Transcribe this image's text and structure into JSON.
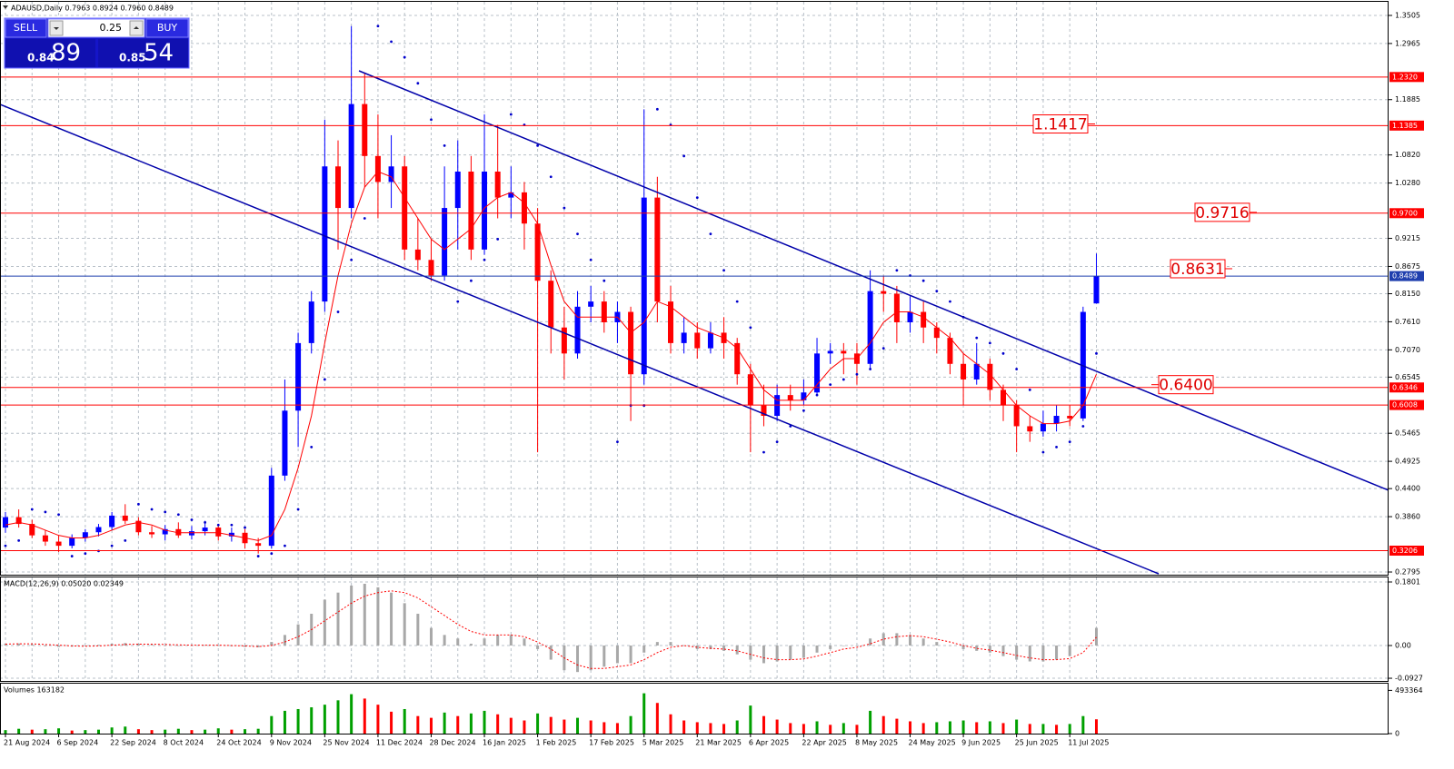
{
  "trade_panel": {
    "sell": "SELL",
    "buy": "BUY",
    "lot": "0.25",
    "sell_big": "0.84",
    "sell_small": "89",
    "buy_big": "0.85",
    "buy_small": "54"
  },
  "chart_data": [
    {
      "type": "candlestick",
      "title": "ADAUSD,Daily 0.7963 0.8924 0.7960 0.8489",
      "categories": [
        "21 Aug 2024",
        null,
        null,
        null,
        "6 Sep 2024",
        null,
        null,
        null,
        "22 Sep 2024",
        null,
        null,
        null,
        "8 Oct 2024",
        null,
        null,
        null,
        "24 Oct 2024",
        null,
        null,
        null,
        "9 Nov 2024",
        null,
        null,
        null,
        "25 Nov 2024",
        null,
        null,
        null,
        "11 Dec 2024",
        null,
        null,
        null,
        "28 Dec 2024",
        null,
        null,
        null,
        "16 Jan 2025",
        null,
        null,
        null,
        "1 Feb 2025",
        null,
        null,
        null,
        "17 Feb 2025",
        null,
        null,
        null,
        "5 Mar 2025",
        null,
        null,
        null,
        "21 Mar 2025",
        null,
        null,
        null,
        "6 Apr 2025",
        null,
        null,
        null,
        "22 Apr 2025",
        null,
        null,
        null,
        "8 May 2025",
        null,
        null,
        null,
        "24 May 2025",
        null,
        null,
        null,
        "9 Jun 2025",
        null,
        null,
        null,
        "25 Jun 2025",
        null,
        null,
        null,
        "11 Jul 2025",
        null,
        null
      ],
      "ohlc": [
        [
          0.365,
          0.395,
          0.355,
          0.385
        ],
        [
          0.385,
          0.4,
          0.365,
          0.372
        ],
        [
          0.372,
          0.38,
          0.345,
          0.35
        ],
        [
          0.35,
          0.36,
          0.33,
          0.338
        ],
        [
          0.338,
          0.35,
          0.318,
          0.33
        ],
        [
          0.33,
          0.352,
          0.325,
          0.345
        ],
        [
          0.345,
          0.362,
          0.338,
          0.356
        ],
        [
          0.356,
          0.372,
          0.348,
          0.366
        ],
        [
          0.366,
          0.395,
          0.36,
          0.388
        ],
        [
          0.388,
          0.41,
          0.372,
          0.378
        ],
        [
          0.378,
          0.385,
          0.35,
          0.356
        ],
        [
          0.356,
          0.368,
          0.345,
          0.352
        ],
        [
          0.352,
          0.37,
          0.34,
          0.362
        ],
        [
          0.362,
          0.375,
          0.345,
          0.35
        ],
        [
          0.35,
          0.368,
          0.342,
          0.358
        ],
        [
          0.358,
          0.378,
          0.35,
          0.365
        ],
        [
          0.365,
          0.372,
          0.34,
          0.348
        ],
        [
          0.348,
          0.365,
          0.338,
          0.355
        ],
        [
          0.355,
          0.362,
          0.325,
          0.335
        ],
        [
          0.335,
          0.345,
          0.315,
          0.33
        ],
        [
          0.33,
          0.48,
          0.325,
          0.465
        ],
        [
          0.465,
          0.65,
          0.455,
          0.59
        ],
        [
          0.59,
          0.74,
          0.52,
          0.72
        ],
        [
          0.72,
          0.82,
          0.7,
          0.8
        ],
        [
          0.8,
          1.15,
          0.78,
          1.06
        ],
        [
          1.06,
          1.11,
          0.9,
          0.98
        ],
        [
          0.98,
          1.33,
          0.96,
          1.18
        ],
        [
          1.18,
          1.24,
          1.02,
          1.08
        ],
        [
          1.08,
          1.16,
          0.96,
          1.03
        ],
        [
          1.03,
          1.12,
          0.98,
          1.06
        ],
        [
          1.06,
          1.08,
          0.88,
          0.9
        ],
        [
          0.9,
          0.96,
          0.86,
          0.88
        ],
        [
          0.88,
          0.92,
          0.84,
          0.85
        ],
        [
          0.85,
          1.06,
          0.84,
          0.98
        ],
        [
          0.98,
          1.11,
          0.9,
          1.05
        ],
        [
          1.05,
          1.08,
          0.88,
          0.9
        ],
        [
          0.9,
          1.16,
          0.89,
          1.05
        ],
        [
          1.05,
          1.14,
          0.96,
          1.0
        ],
        [
          1.0,
          1.06,
          0.96,
          1.01
        ],
        [
          1.01,
          1.03,
          0.9,
          0.95
        ],
        [
          0.95,
          0.98,
          0.51,
          0.84
        ],
        [
          0.84,
          0.86,
          0.7,
          0.75
        ],
        [
          0.75,
          0.79,
          0.65,
          0.7
        ],
        [
          0.7,
          0.82,
          0.69,
          0.79
        ],
        [
          0.79,
          0.83,
          0.76,
          0.8
        ],
        [
          0.8,
          0.82,
          0.74,
          0.76
        ],
        [
          0.76,
          0.8,
          0.72,
          0.78
        ],
        [
          0.78,
          0.79,
          0.57,
          0.66
        ],
        [
          0.66,
          1.17,
          0.64,
          1.0
        ],
        [
          1.0,
          1.04,
          0.76,
          0.8
        ],
        [
          0.8,
          0.83,
          0.7,
          0.72
        ],
        [
          0.72,
          0.77,
          0.7,
          0.74
        ],
        [
          0.74,
          0.76,
          0.69,
          0.71
        ],
        [
          0.71,
          0.76,
          0.7,
          0.74
        ],
        [
          0.74,
          0.77,
          0.69,
          0.72
        ],
        [
          0.72,
          0.73,
          0.64,
          0.66
        ],
        [
          0.66,
          0.68,
          0.51,
          0.6
        ],
        [
          0.6,
          0.64,
          0.56,
          0.58
        ],
        [
          0.58,
          0.64,
          0.57,
          0.62
        ],
        [
          0.62,
          0.64,
          0.59,
          0.61
        ],
        [
          0.61,
          0.65,
          0.6,
          0.625
        ],
        [
          0.625,
          0.73,
          0.62,
          0.7
        ],
        [
          0.7,
          0.72,
          0.68,
          0.705
        ],
        [
          0.705,
          0.72,
          0.66,
          0.7
        ],
        [
          0.7,
          0.72,
          0.64,
          0.68
        ],
        [
          0.68,
          0.86,
          0.67,
          0.82
        ],
        [
          0.82,
          0.85,
          0.78,
          0.815
        ],
        [
          0.815,
          0.83,
          0.72,
          0.76
        ],
        [
          0.76,
          0.81,
          0.74,
          0.78
        ],
        [
          0.78,
          0.8,
          0.72,
          0.75
        ],
        [
          0.75,
          0.76,
          0.7,
          0.73
        ],
        [
          0.73,
          0.74,
          0.66,
          0.68
        ],
        [
          0.68,
          0.7,
          0.6,
          0.65
        ],
        [
          0.65,
          0.72,
          0.64,
          0.68
        ],
        [
          0.68,
          0.69,
          0.61,
          0.63
        ],
        [
          0.63,
          0.64,
          0.57,
          0.6
        ],
        [
          0.6,
          0.61,
          0.51,
          0.56
        ],
        [
          0.56,
          0.58,
          0.53,
          0.55
        ],
        [
          0.55,
          0.59,
          0.54,
          0.565
        ],
        [
          0.565,
          0.6,
          0.55,
          0.58
        ],
        [
          0.58,
          0.6,
          0.56,
          0.575
        ],
        [
          0.575,
          0.79,
          0.57,
          0.78
        ],
        [
          0.7963,
          0.8924,
          0.796,
          0.8489
        ]
      ],
      "up_color": "#0000ff",
      "down_color": "#ff0000",
      "ma": [
        0.37,
        0.375,
        0.37,
        0.36,
        0.35,
        0.345,
        0.345,
        0.35,
        0.36,
        0.37,
        0.375,
        0.37,
        0.36,
        0.355,
        0.355,
        0.355,
        0.355,
        0.35,
        0.345,
        0.34,
        0.35,
        0.4,
        0.48,
        0.58,
        0.72,
        0.85,
        0.95,
        1.02,
        1.05,
        1.04,
        1.0,
        0.96,
        0.92,
        0.9,
        0.92,
        0.94,
        0.98,
        1.0,
        1.01,
        0.99,
        0.95,
        0.87,
        0.8,
        0.77,
        0.77,
        0.77,
        0.77,
        0.74,
        0.76,
        0.8,
        0.79,
        0.77,
        0.75,
        0.74,
        0.73,
        0.71,
        0.67,
        0.63,
        0.61,
        0.61,
        0.61,
        0.64,
        0.67,
        0.69,
        0.69,
        0.72,
        0.76,
        0.78,
        0.78,
        0.77,
        0.75,
        0.73,
        0.7,
        0.68,
        0.66,
        0.63,
        0.6,
        0.58,
        0.565,
        0.565,
        0.57,
        0.6,
        0.66
      ],
      "ma_color": "#ff0000",
      "sar": [
        0.33,
        0.34,
        0.4,
        0.395,
        0.39,
        0.31,
        0.315,
        0.32,
        0.33,
        0.34,
        0.41,
        0.4,
        0.395,
        0.39,
        0.38,
        0.375,
        0.37,
        0.37,
        0.365,
        0.31,
        0.315,
        0.33,
        0.4,
        0.52,
        0.65,
        0.78,
        0.88,
        0.96,
        1.33,
        1.3,
        1.27,
        1.22,
        1.15,
        1.1,
        0.8,
        0.84,
        0.88,
        0.92,
        1.16,
        1.14,
        1.1,
        1.04,
        0.98,
        0.93,
        0.88,
        0.84,
        0.53,
        0.6,
        0.6,
        1.17,
        1.14,
        1.08,
        1.0,
        0.93,
        0.86,
        0.8,
        0.75,
        0.51,
        0.53,
        0.56,
        0.59,
        0.62,
        0.64,
        0.65,
        0.66,
        0.67,
        0.71,
        0.86,
        0.85,
        0.84,
        0.82,
        0.8,
        0.77,
        0.73,
        0.72,
        0.7,
        0.67,
        0.63,
        0.51,
        0.52,
        0.53,
        0.56,
        0.7
      ],
      "sar_color": "#0000cc",
      "levels": [
        {
          "value": 1.232,
          "label": "1.2320",
          "color": "#ff0000"
        },
        {
          "value": 1.1385,
          "label": "1.1385",
          "color": "#ff0000"
        },
        {
          "value": 0.97,
          "label": "0.9700",
          "color": "#ff0000"
        },
        {
          "value": 0.8489,
          "label": "0.8489",
          "color": "#1f3fae"
        },
        {
          "value": 0.6346,
          "label": "0.6346",
          "color": "#ff0000"
        },
        {
          "value": 0.6008,
          "label": "0.6008",
          "color": "#ff0000"
        },
        {
          "value": 0.3206,
          "label": "0.3206",
          "color": "#ff0000"
        }
      ],
      "annotations": [
        1.1417,
        0.9716,
        0.8631,
        {
          "value": 0.64,
          "label": "0.6400"
        }
      ],
      "ylim": [
        0.2743,
        1.3767
      ],
      "yticks": [
        1.3505,
        1.2965,
        1.1885,
        {
          "value": 1.082,
          "label": "1.0820"
        },
        {
          "value": 1.028,
          "label": "1.0280"
        },
        0.9215,
        0.8675,
        {
          "value": 0.815,
          "label": "0.8150"
        },
        {
          "value": 0.761,
          "label": "0.7610"
        },
        {
          "value": 0.707,
          "label": "0.7070"
        },
        0.6545,
        0.5465,
        0.4925,
        {
          "value": 0.44,
          "label": "0.4400"
        },
        {
          "value": 0.386,
          "label": "0.3860"
        },
        0.2795
      ],
      "grid": true
    },
    {
      "type": "macd",
      "title": "MACD(12,26,9) 0.05020 0.02349",
      "histogram": [
        0.005,
        0.006,
        0.003,
        -0.002,
        -0.004,
        -0.003,
        -0.001,
        0.002,
        0.005,
        0.007,
        0.005,
        0.002,
        0.0,
        -0.001,
        0.0,
        0.001,
        0.0,
        -0.002,
        -0.004,
        -0.005,
        0.01,
        0.03,
        0.06,
        0.09,
        0.13,
        0.15,
        0.17,
        0.175,
        0.165,
        0.15,
        0.12,
        0.09,
        0.05,
        0.03,
        0.02,
        0.005,
        0.02,
        0.03,
        0.03,
        0.02,
        -0.01,
        -0.04,
        -0.07,
        -0.075,
        -0.07,
        -0.06,
        -0.05,
        -0.05,
        -0.02,
        0.01,
        0.01,
        0.0,
        -0.01,
        -0.01,
        -0.015,
        -0.025,
        -0.04,
        -0.05,
        -0.045,
        -0.04,
        -0.035,
        -0.02,
        -0.01,
        0.0,
        0.0,
        0.02,
        0.035,
        0.035,
        0.03,
        0.02,
        0.01,
        0.0,
        -0.01,
        -0.015,
        -0.02,
        -0.03,
        -0.04,
        -0.045,
        -0.045,
        -0.04,
        -0.03,
        0.0,
        0.0502
      ],
      "signal": [
        0.004,
        0.005,
        0.005,
        0.003,
        0.001,
        -0.001,
        -0.002,
        -0.001,
        0.001,
        0.003,
        0.004,
        0.004,
        0.003,
        0.002,
        0.001,
        0.001,
        0.001,
        0.0,
        -0.001,
        -0.003,
        0.0,
        0.01,
        0.025,
        0.045,
        0.07,
        0.095,
        0.12,
        0.14,
        0.15,
        0.155,
        0.15,
        0.135,
        0.11,
        0.085,
        0.06,
        0.04,
        0.03,
        0.03,
        0.03,
        0.025,
        0.01,
        -0.01,
        -0.035,
        -0.055,
        -0.065,
        -0.065,
        -0.06,
        -0.055,
        -0.04,
        -0.02,
        -0.005,
        0.0,
        -0.005,
        -0.008,
        -0.01,
        -0.015,
        -0.025,
        -0.035,
        -0.04,
        -0.04,
        -0.038,
        -0.03,
        -0.02,
        -0.01,
        -0.005,
        0.005,
        0.018,
        0.025,
        0.028,
        0.025,
        0.018,
        0.01,
        0.0,
        -0.008,
        -0.013,
        -0.02,
        -0.028,
        -0.035,
        -0.04,
        -0.04,
        -0.037,
        -0.02,
        0.02349
      ],
      "histogram_color": "#a8a8a8",
      "signal_color": "#ff0000",
      "ylim": [
        -0.1003,
        0.193
      ],
      "yticks": [
        0.1801,
        {
          "value": 0,
          "label": "0.00"
        },
        -0.0927
      ],
      "grid": true
    },
    {
      "type": "volume",
      "title": "Volumes 163182",
      "values": [
        40000,
        55000,
        45000,
        50000,
        60000,
        35000,
        40000,
        45000,
        70000,
        80000,
        50000,
        40000,
        45000,
        55000,
        40000,
        45000,
        60000,
        45000,
        50000,
        55000,
        200000,
        260000,
        280000,
        300000,
        330000,
        380000,
        450000,
        400000,
        330000,
        250000,
        280000,
        200000,
        180000,
        240000,
        200000,
        230000,
        260000,
        220000,
        180000,
        150000,
        230000,
        190000,
        160000,
        180000,
        150000,
        130000,
        120000,
        200000,
        460000,
        350000,
        220000,
        150000,
        130000,
        120000,
        110000,
        150000,
        320000,
        200000,
        160000,
        120000,
        110000,
        140000,
        100000,
        120000,
        100000,
        260000,
        200000,
        170000,
        140000,
        120000,
        130000,
        140000,
        150000,
        130000,
        140000,
        120000,
        160000,
        110000,
        110000,
        100000,
        110000,
        200000,
        163182
      ],
      "up_color": "#00a000",
      "down_color": "#ff0000",
      "ylim": [
        0,
        570000
      ],
      "yticks": [
        493364,
        0
      ],
      "grid": false
    }
  ]
}
